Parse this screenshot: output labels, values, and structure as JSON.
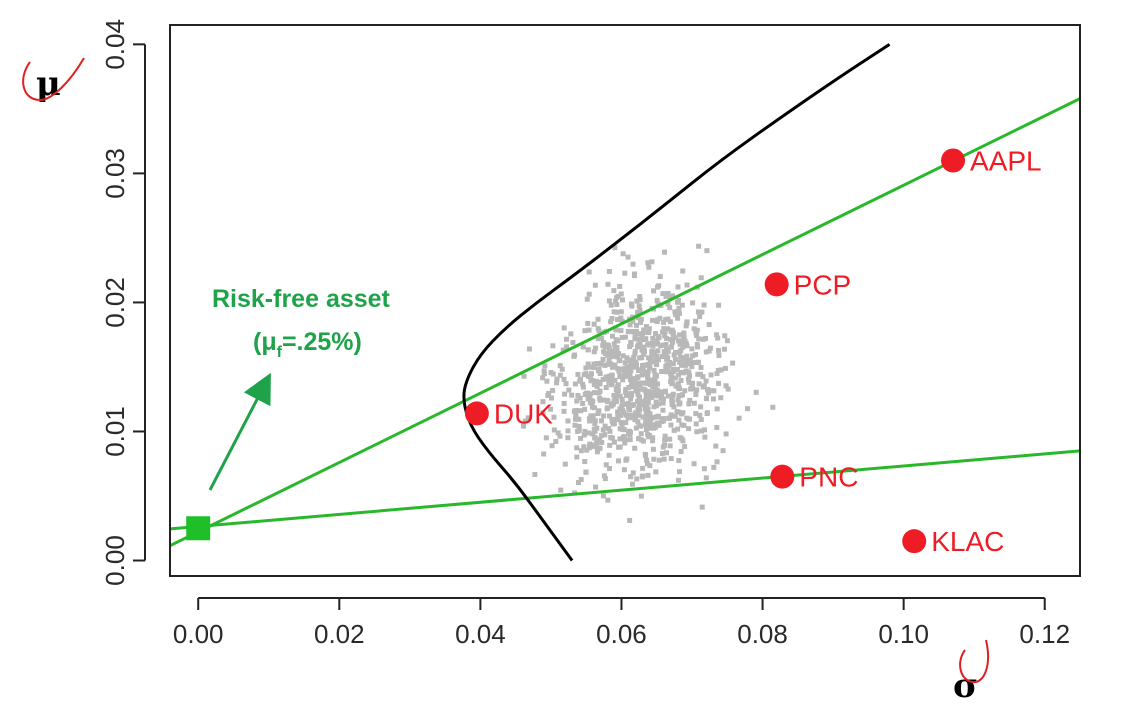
{
  "chart_data": {
    "type": "scatter",
    "title": "",
    "xlabel": "σ",
    "ylabel": "μ",
    "xlim": [
      -0.004,
      0.125
    ],
    "ylim": [
      -0.0012,
      0.0415
    ],
    "xticks": [
      0.0,
      0.02,
      0.04,
      0.06,
      0.08,
      0.1,
      0.12
    ],
    "xtick_labels": [
      "0.00",
      "0.02",
      "0.04",
      "0.06",
      "0.08",
      "0.10",
      "0.12"
    ],
    "yticks": [
      0.0,
      0.01,
      0.02,
      0.03,
      0.04
    ],
    "ytick_labels": [
      "0.00",
      "0.01",
      "0.02",
      "0.03",
      "0.04"
    ],
    "grid": false,
    "frontier": {
      "type": "line",
      "color": "#000000",
      "points": [
        [
          0.053,
          0.0
        ],
        [
          0.049,
          0.003
        ],
        [
          0.045,
          0.006
        ],
        [
          0.041,
          0.0085
        ],
        [
          0.0385,
          0.0105
        ],
        [
          0.0375,
          0.0125
        ],
        [
          0.038,
          0.014
        ],
        [
          0.04,
          0.016
        ],
        [
          0.0435,
          0.018
        ],
        [
          0.048,
          0.02
        ],
        [
          0.053,
          0.022
        ],
        [
          0.059,
          0.0245
        ],
        [
          0.066,
          0.0275
        ],
        [
          0.074,
          0.031
        ],
        [
          0.083,
          0.0345
        ],
        [
          0.091,
          0.0375
        ],
        [
          0.098,
          0.04
        ]
      ]
    },
    "capital_lines": [
      {
        "color": "#29b72b",
        "from": [
          -0.004,
          0.00115
        ],
        "to": [
          0.125,
          0.0358
        ]
      },
      {
        "color": "#29b72b",
        "from": [
          -0.004,
          0.00245
        ],
        "to": [
          0.125,
          0.0085
        ]
      }
    ],
    "risk_free": {
      "x": 0.0,
      "y": 0.0025,
      "color": "#1fbf2a",
      "marker": "square"
    },
    "random_portfolios": {
      "color": "#b8b8b8",
      "count": 950,
      "center": [
        0.0625,
        0.014
      ],
      "spread": [
        0.0085,
        0.005
      ]
    },
    "stocks": {
      "color": "#ee1c25",
      "points": [
        {
          "name": "AAPL",
          "x": 0.107,
          "y": 0.031
        },
        {
          "name": "PCP",
          "x": 0.082,
          "y": 0.0214
        },
        {
          "name": "DUK",
          "x": 0.0395,
          "y": 0.0114
        },
        {
          "name": "PNC",
          "x": 0.0828,
          "y": 0.0065
        },
        {
          "name": "KLAC",
          "x": 0.1015,
          "y": 0.0015
        }
      ]
    },
    "annotation": {
      "line1": "Risk-free asset",
      "line2_prefix": "(μ",
      "line2_sub": "f",
      "line2_suffix": "=.25%)",
      "color": "#1fa34a"
    }
  }
}
